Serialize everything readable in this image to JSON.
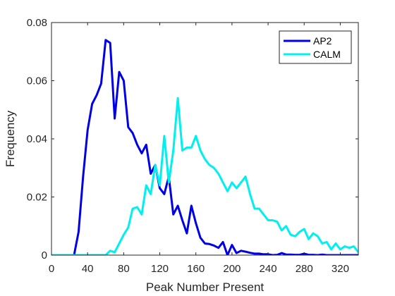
{
  "chart_data": {
    "type": "line",
    "title": "",
    "xlabel": "Peak Number Present",
    "ylabel": "Frequency",
    "xlim": [
      0,
      340
    ],
    "ylim": [
      0,
      0.08
    ],
    "xticks": [
      0,
      40,
      80,
      120,
      160,
      200,
      240,
      280,
      320
    ],
    "yticks": [
      0,
      0.02,
      0.04,
      0.06,
      0.08
    ],
    "xtick_labels": [
      "0",
      "40",
      "80",
      "120",
      "160",
      "200",
      "240",
      "280",
      "320"
    ],
    "ytick_labels": [
      "0",
      "0.02",
      "0.04",
      "0.06",
      "0.08"
    ],
    "grid": false,
    "legend": "top-right",
    "series": [
      {
        "name": "AP2",
        "color": "#0000e6",
        "x": [
          0,
          25,
          30,
          35,
          40,
          45,
          50,
          55,
          60,
          65,
          70,
          75,
          80,
          85,
          90,
          95,
          100,
          105,
          110,
          115,
          120,
          125,
          130,
          135,
          140,
          145,
          150,
          155,
          160,
          165,
          170,
          175,
          180,
          185,
          190,
          195,
          200,
          205,
          210,
          215,
          220,
          225,
          230,
          235,
          240,
          245,
          250,
          255,
          260,
          265,
          270,
          275,
          280,
          285,
          290,
          295,
          300,
          305,
          310,
          315,
          320,
          325,
          330,
          335,
          340
        ],
        "y": [
          0,
          0,
          0.008,
          0.027,
          0.043,
          0.052,
          0.055,
          0.059,
          0.074,
          0.073,
          0.047,
          0.063,
          0.06,
          0.044,
          0.042,
          0.038,
          0.035,
          0.038,
          0.028,
          0.031,
          0.023,
          0.021,
          0.027,
          0.014,
          0.017,
          0.012,
          0.0075,
          0.017,
          0.011,
          0.006,
          0.004,
          0.0038,
          0.0033,
          0.0025,
          0.0045,
          0.0,
          0.0035,
          0.0007,
          0.0015,
          0.0012,
          0.0008,
          0.0005,
          0.0005,
          0.0003,
          0.0003,
          0.0,
          0.0001,
          0.0007,
          0.0002,
          0.0002,
          0.0001,
          0.0001,
          0.0005,
          0.0001,
          0.0001,
          0.0,
          0.0002,
          0.0,
          0.0,
          0.0,
          0.0,
          0.0,
          0.0,
          0.0,
          0.0
        ]
      },
      {
        "name": "CALM",
        "color": "#00f0f0",
        "x": [
          0,
          60,
          65,
          70,
          75,
          80,
          85,
          90,
          95,
          100,
          105,
          110,
          115,
          120,
          125,
          130,
          135,
          140,
          145,
          150,
          155,
          160,
          165,
          170,
          175,
          180,
          185,
          190,
          195,
          200,
          205,
          210,
          215,
          220,
          225,
          230,
          235,
          240,
          245,
          250,
          255,
          260,
          265,
          270,
          275,
          280,
          285,
          290,
          295,
          300,
          305,
          310,
          315,
          320,
          325,
          330,
          335,
          340
        ],
        "y": [
          0,
          0,
          0.0015,
          0.001,
          0.004,
          0.007,
          0.0095,
          0.016,
          0.0165,
          0.014,
          0.024,
          0.021,
          0.031,
          0.024,
          0.041,
          0.025,
          0.036,
          0.054,
          0.036,
          0.037,
          0.037,
          0.041,
          0.036,
          0.033,
          0.031,
          0.03,
          0.028,
          0.025,
          0.022,
          0.025,
          0.023,
          0.025,
          0.027,
          0.021,
          0.016,
          0.016,
          0.014,
          0.012,
          0.012,
          0.0115,
          0.0085,
          0.01,
          0.007,
          0.0065,
          0.008,
          0.009,
          0.0055,
          0.0075,
          0.0065,
          0.004,
          0.0045,
          0.002,
          0.004,
          0.002,
          0.003,
          0.0025,
          0.003,
          0.001
        ]
      }
    ]
  }
}
